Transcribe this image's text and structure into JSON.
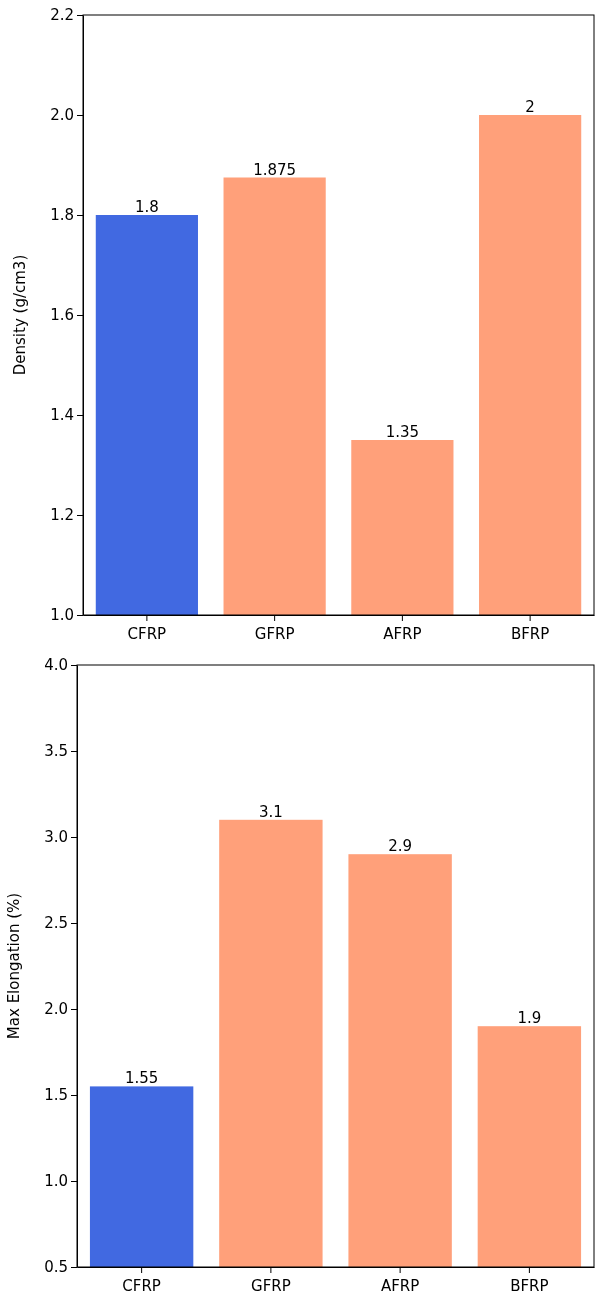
{
  "chart_data": [
    {
      "type": "bar",
      "categories": [
        "CFRP",
        "GFRP",
        "AFRP",
        "BFRP"
      ],
      "values": [
        1.8,
        1.875,
        1.35,
        2
      ],
      "colors": [
        "#4169e1",
        "#ffa07a",
        "#ffa07a",
        "#ffa07a"
      ],
      "ylabel": "Density (g/cm3)",
      "ylim": [
        1.0,
        2.2
      ],
      "yticks": [
        {
          "value": 1.0,
          "label": "1.0"
        },
        1.2,
        1.4,
        1.6,
        1.8,
        {
          "value": 2.0,
          "label": "2.0"
        },
        2.2
      ],
      "data_labels": true
    },
    {
      "type": "bar",
      "categories": [
        "CFRP",
        "GFRP",
        "AFRP",
        "BFRP"
      ],
      "values": [
        1.55,
        3.1,
        2.9,
        1.9
      ],
      "colors": [
        "#4169e1",
        "#ffa07a",
        "#ffa07a",
        "#ffa07a"
      ],
      "ylabel": "Max Elongation (%)",
      "ylim": [
        0.5,
        4.0
      ],
      "yticks": [
        0.5,
        {
          "value": 1.0,
          "label": "1.0"
        },
        1.5,
        {
          "value": 2.0,
          "label": "2.0"
        },
        2.5,
        {
          "value": 3.0,
          "label": "3.0"
        },
        3.5,
        {
          "value": 4.0,
          "label": "4.0"
        }
      ],
      "data_labels": true
    }
  ]
}
